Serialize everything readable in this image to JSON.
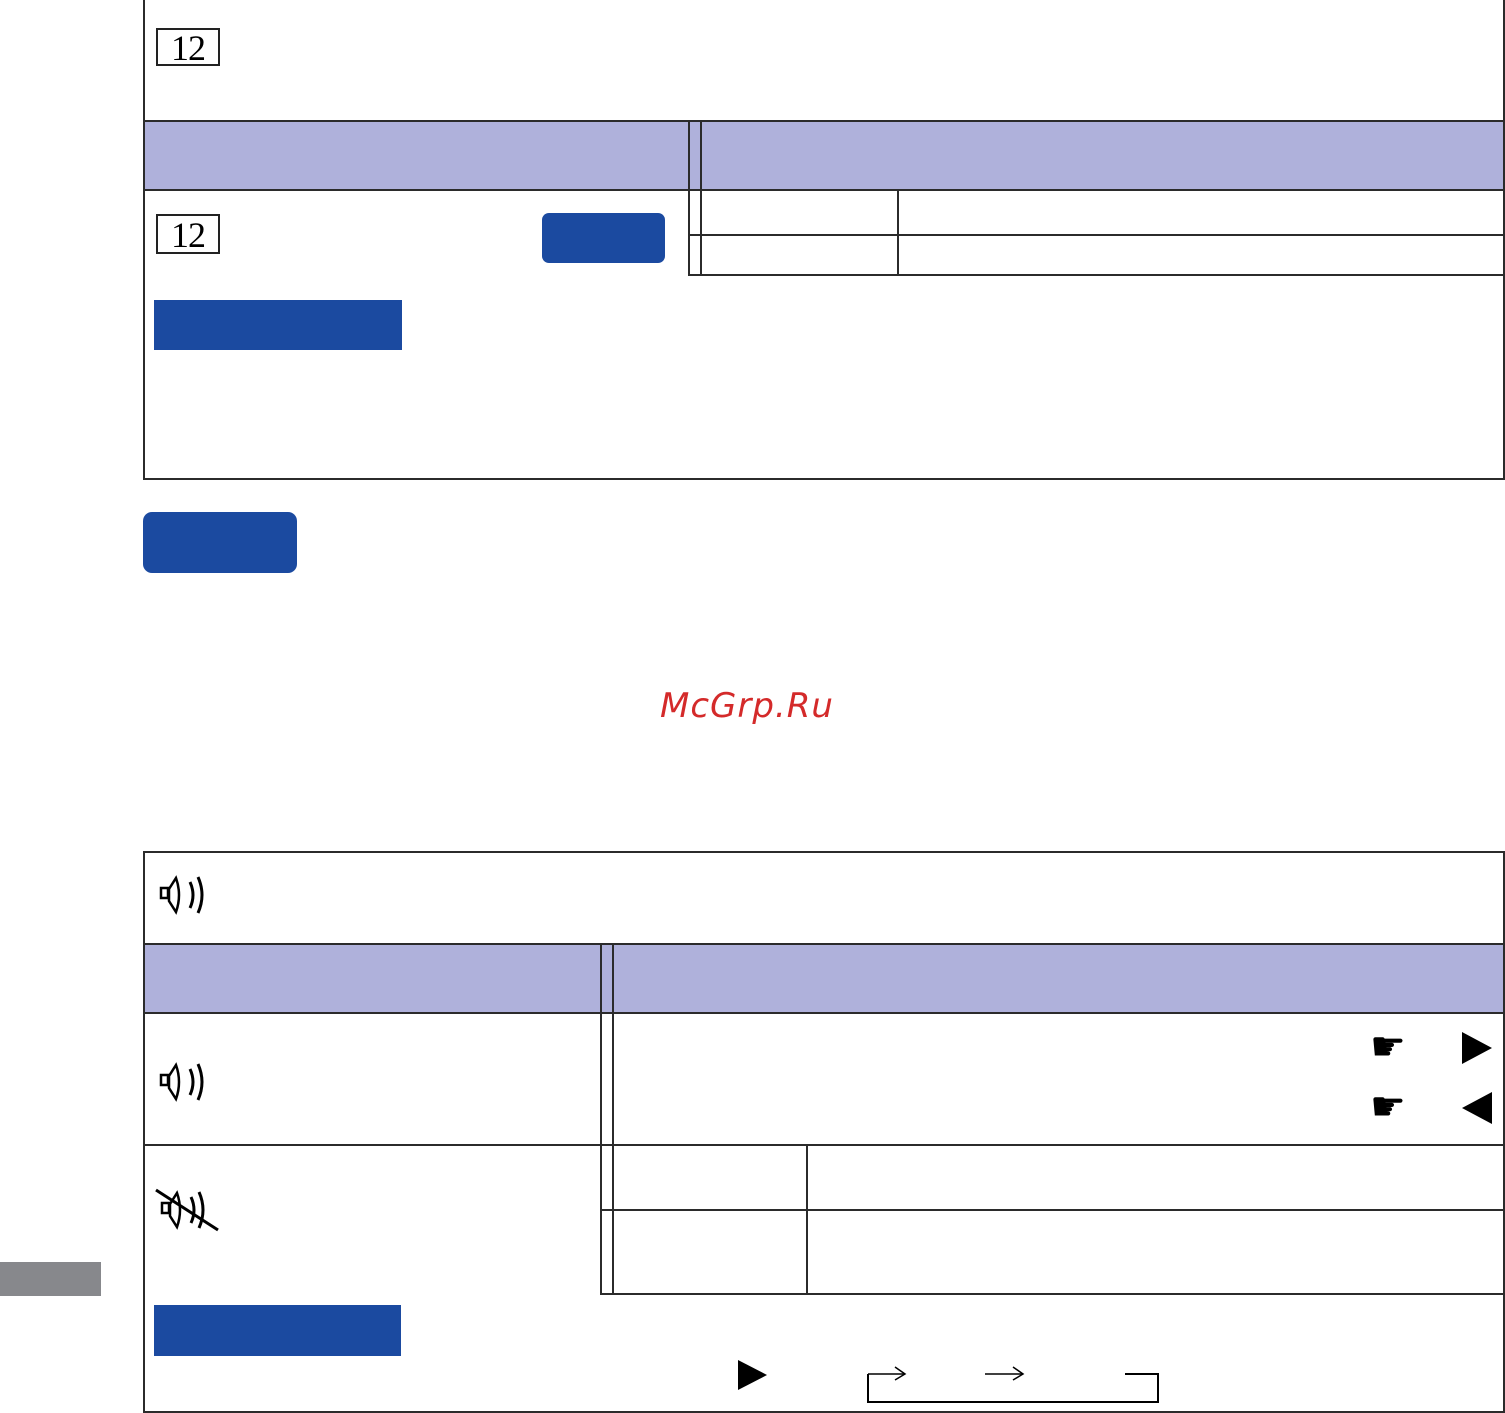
{
  "section1": {
    "icon_number": "12"
  },
  "watermark": {
    "text": "McGrp.Ru"
  },
  "section2": {
    "direct_icon_name": "pointing-hand-icon",
    "direct_icon_name2": "pointing-hand-icon"
  },
  "colors": {
    "header": "#afb1db",
    "badge": "#1b4aa0",
    "watermark": "#d42a2a"
  }
}
